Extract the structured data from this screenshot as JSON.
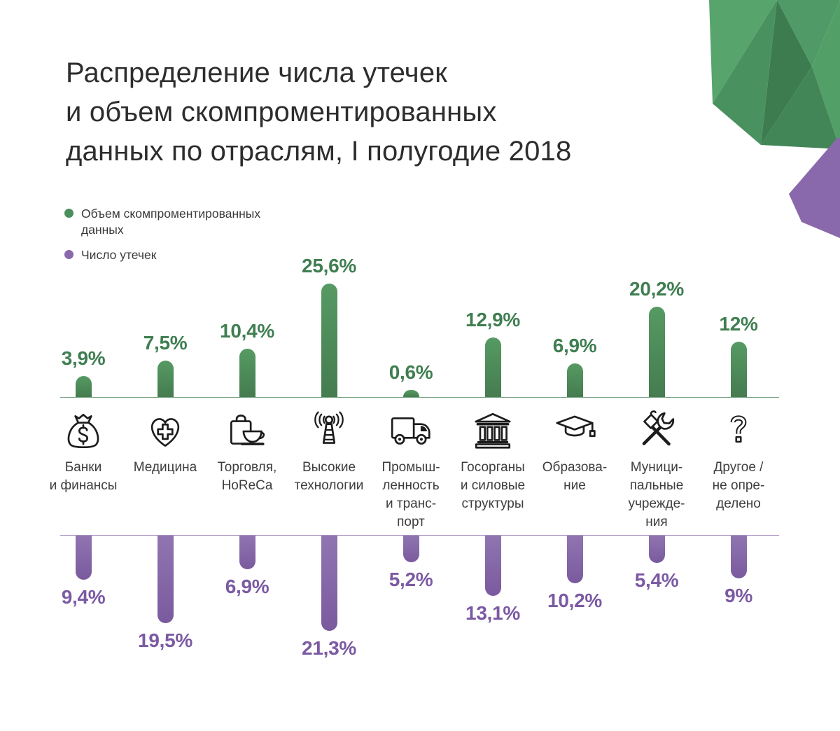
{
  "title": "Распределение числа утечек\nи объем скомпроментированных\nданных по отраслям, I полугодие 2018",
  "legend": {
    "volume_label": "Объем скомпроментированных\nданных",
    "count_label": "Число утечек"
  },
  "colors": {
    "green": "#4c8f5e",
    "green_light": "#569a63",
    "green_dark": "#457c50",
    "green_text": "#3f7e51",
    "purple": "#8a68ac",
    "purple_light": "#9075b1",
    "purple_dark": "#7a5a9e",
    "purple_text": "#7b5aa3",
    "axis_green": "#719e7e",
    "axis_purple": "#a78ec0",
    "icon_stroke": "#1c1c1c"
  },
  "chart_data": {
    "type": "bar",
    "orientation": "diverging-vertical",
    "title": "Распределение числа утечек и объем скомпроментированных данных по отраслям, I полугодие 2018",
    "unit": "%",
    "legend_position": "top-left",
    "grid": false,
    "categories": [
      {
        "label": "Банки\nи финансы",
        "icon": "money-bag-icon"
      },
      {
        "label": "Медицина",
        "icon": "medicine-heart-icon"
      },
      {
        "label": "Торговля,\nHoReCa",
        "icon": "shopping-bag-coffee-icon"
      },
      {
        "label": "Высокие\nтехнологии",
        "icon": "radio-antenna-icon"
      },
      {
        "label": "Промыш-\nленность\nи транс-\nпорт",
        "icon": "truck-icon"
      },
      {
        "label": "Госорганы\nи силовые\nструктуры",
        "icon": "government-building-icon"
      },
      {
        "label": "Образова-\nние",
        "icon": "graduation-cap-icon"
      },
      {
        "label": "Муници-\nпальные\nучрежде-\nния",
        "icon": "hammer-wrench-icon"
      },
      {
        "label": "Другое /\nне опре-\nделено",
        "icon": "question-mark-icon"
      }
    ],
    "series": [
      {
        "name": "Объем скомпроментированных данных",
        "color": "#4c8f5e",
        "direction": "up",
        "values": [
          3.9,
          7.5,
          10.4,
          25.6,
          0.6,
          12.9,
          6.9,
          20.2,
          12
        ],
        "labels": [
          "3,9%",
          "7,5%",
          "10,4%",
          "25,6%",
          "0,6%",
          "12,9%",
          "6,9%",
          "20,2%",
          "12%"
        ]
      },
      {
        "name": "Число утечек",
        "color": "#8a68ac",
        "direction": "down",
        "values": [
          9.4,
          19.5,
          6.9,
          21.3,
          5.2,
          13.1,
          10.2,
          5.4,
          9
        ],
        "labels": [
          "9,4%",
          "19,5%",
          "6,9%",
          "21,3%",
          "5,2%",
          "13,1%",
          "10,2%",
          "5,4%",
          "9%"
        ]
      }
    ]
  }
}
